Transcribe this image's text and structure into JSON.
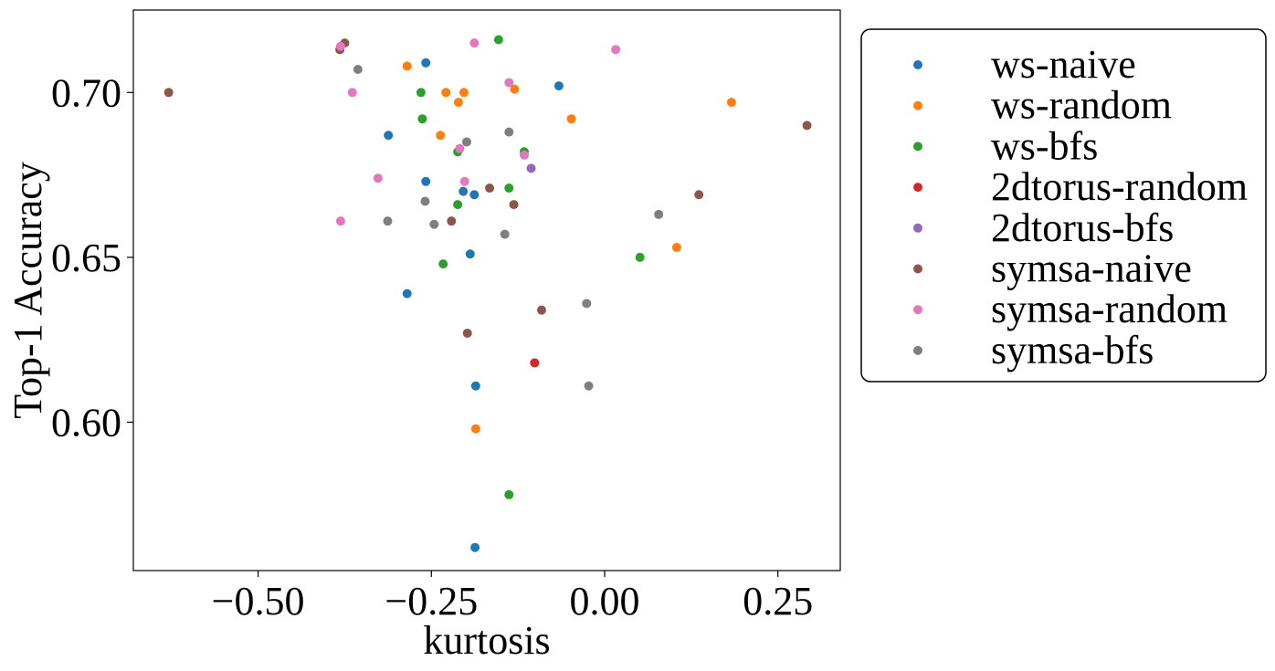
{
  "chart_data": {
    "type": "scatter",
    "title": "",
    "xlabel": "kurtosis",
    "ylabel": "Top-1 Accuracy",
    "xlim": [
      -0.68,
      0.34
    ],
    "ylim": [
      0.555,
      0.725
    ],
    "xticks": [
      -0.5,
      -0.25,
      0.0,
      0.25
    ],
    "xtick_labels": [
      "−0.50",
      "−0.25",
      "0.00",
      "0.25"
    ],
    "yticks": [
      0.6,
      0.65,
      0.7
    ],
    "ytick_labels": [
      "0.60",
      "0.65",
      "0.70"
    ],
    "grid": false,
    "legend_position": "outside-right-top",
    "series": [
      {
        "name": "ws-naive",
        "color": "#1f77b4",
        "points": [
          [
            -0.258,
            0.709
          ],
          [
            -0.066,
            0.702
          ],
          [
            -0.312,
            0.687
          ],
          [
            -0.258,
            0.673
          ],
          [
            -0.204,
            0.67
          ],
          [
            -0.188,
            0.669
          ],
          [
            -0.194,
            0.651
          ],
          [
            -0.285,
            0.639
          ],
          [
            -0.186,
            0.611
          ],
          [
            -0.187,
            0.562
          ]
        ]
      },
      {
        "name": "ws-random",
        "color": "#ff7f0e",
        "points": [
          [
            -0.285,
            0.708
          ],
          [
            -0.229,
            0.7
          ],
          [
            -0.203,
            0.7
          ],
          [
            -0.13,
            0.701
          ],
          [
            -0.211,
            0.697
          ],
          [
            0.183,
            0.697
          ],
          [
            -0.048,
            0.692
          ],
          [
            -0.237,
            0.687
          ],
          [
            0.104,
            0.653
          ],
          [
            -0.186,
            0.598
          ]
        ]
      },
      {
        "name": "ws-bfs",
        "color": "#2ca02c",
        "points": [
          [
            -0.153,
            0.716
          ],
          [
            -0.265,
            0.7
          ],
          [
            -0.263,
            0.692
          ],
          [
            -0.212,
            0.682
          ],
          [
            -0.116,
            0.682
          ],
          [
            -0.138,
            0.671
          ],
          [
            -0.212,
            0.666
          ],
          [
            0.051,
            0.65
          ],
          [
            -0.233,
            0.648
          ],
          [
            -0.138,
            0.578
          ]
        ]
      },
      {
        "name": "2dtorus-random",
        "color": "#d62728",
        "points": [
          [
            -0.101,
            0.618
          ]
        ]
      },
      {
        "name": "2dtorus-bfs",
        "color": "#9467bd",
        "points": [
          [
            -0.106,
            0.677
          ]
        ]
      },
      {
        "name": "symsa-naive",
        "color": "#8c564b",
        "points": [
          [
            -0.375,
            0.715
          ],
          [
            -0.382,
            0.713
          ],
          [
            -0.629,
            0.7
          ],
          [
            0.292,
            0.69
          ],
          [
            -0.166,
            0.671
          ],
          [
            0.136,
            0.669
          ],
          [
            -0.131,
            0.666
          ],
          [
            -0.221,
            0.661
          ],
          [
            -0.091,
            0.634
          ],
          [
            -0.198,
            0.627
          ]
        ]
      },
      {
        "name": "symsa-random",
        "color": "#e377c2",
        "points": [
          [
            -0.188,
            0.715
          ],
          [
            0.016,
            0.713
          ],
          [
            -0.381,
            0.714
          ],
          [
            -0.138,
            0.703
          ],
          [
            -0.364,
            0.7
          ],
          [
            -0.209,
            0.683
          ],
          [
            -0.116,
            0.681
          ],
          [
            -0.327,
            0.674
          ],
          [
            -0.202,
            0.673
          ],
          [
            -0.381,
            0.661
          ]
        ]
      },
      {
        "name": "symsa-bfs",
        "color": "#7f7f7f",
        "points": [
          [
            -0.356,
            0.707
          ],
          [
            -0.138,
            0.688
          ],
          [
            -0.199,
            0.685
          ],
          [
            -0.259,
            0.667
          ],
          [
            0.078,
            0.663
          ],
          [
            -0.313,
            0.661
          ],
          [
            -0.246,
            0.66
          ],
          [
            -0.144,
            0.657
          ],
          [
            -0.026,
            0.636
          ],
          [
            -0.023,
            0.611
          ]
        ]
      }
    ]
  }
}
